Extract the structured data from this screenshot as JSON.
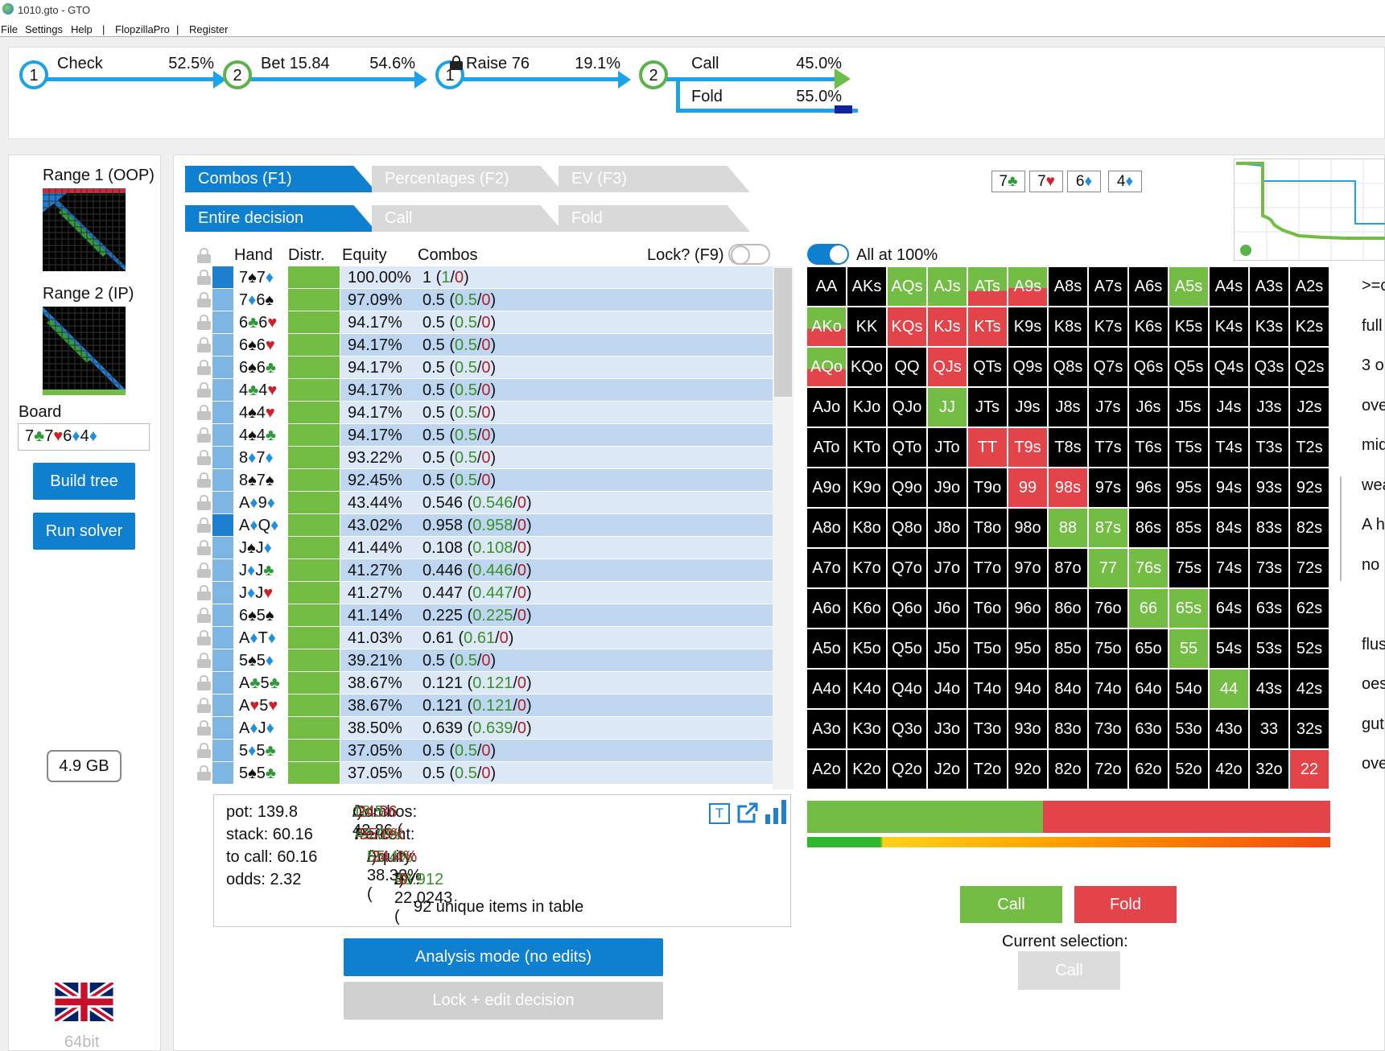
{
  "window": {
    "title": "1010.gto - GTO",
    "menu": [
      "File",
      "Settings",
      "Help",
      "|",
      "FlopzillaPro",
      "|",
      "Register"
    ]
  },
  "action_tree": {
    "nodes": [
      {
        "player": "1",
        "action": "Check",
        "pct": "52.5%"
      },
      {
        "player": "2",
        "action": "Bet 15.84",
        "pct": "54.6%"
      },
      {
        "player": "1",
        "action": "Raise 76",
        "pct": "19.1%",
        "locked": true
      },
      {
        "player": "2",
        "branches": [
          {
            "action": "Call",
            "pct": "45.0%"
          },
          {
            "action": "Fold",
            "pct": "55.0%"
          }
        ]
      }
    ]
  },
  "left": {
    "range1_label": "Range 1 (OOP)",
    "range2_label": "Range 2 (IP)",
    "board_label": "Board",
    "board_cards": [
      {
        "rank": "7",
        "suit": "♣",
        "color": "#2e9a3a"
      },
      {
        "rank": "7",
        "suit": "♥",
        "color": "#d0202a"
      },
      {
        "rank": "6",
        "suit": "♦",
        "color": "#1f8fe0"
      },
      {
        "rank": "4",
        "suit": "♦",
        "color": "#1f8fe0"
      }
    ],
    "build_tree": "Build tree",
    "run_solver": "Run solver",
    "memory": "4.9 GB",
    "bits": "64bit"
  },
  "tabs_row1": [
    "Combos (F1)",
    "Percentages (F2)",
    "EV (F3)"
  ],
  "tabs_row2": [
    "Entire decision",
    "Call",
    "Fold"
  ],
  "board_cards_display": [
    {
      "rank": "7",
      "suit": "♣",
      "color": "#2e9a3a"
    },
    {
      "rank": "7",
      "suit": "♥",
      "color": "#d0202a"
    },
    {
      "rank": "6",
      "suit": "♦",
      "color": "#1f8fe0"
    },
    {
      "rank": "4",
      "suit": "♦",
      "color": "#1f8fe0"
    }
  ],
  "table": {
    "headers": {
      "hand": "Hand",
      "distr": "Distr.",
      "equity": "Equity",
      "combos": "Combos"
    },
    "lock_label": "Lock? (F9)",
    "rows": [
      {
        "c1": "7",
        "s1": "♠",
        "c2": "7",
        "s2": "♦",
        "eq": "100.00%",
        "cb": "1",
        "call": "1",
        "fold": "0",
        "sel": true
      },
      {
        "c1": "7",
        "s1": "♦",
        "c2": "6",
        "s2": "♠",
        "eq": "97.09%",
        "cb": "0.5",
        "call": "0.5",
        "fold": "0",
        "sel": false
      },
      {
        "c1": "6",
        "s1": "♣",
        "c2": "6",
        "s2": "♥",
        "eq": "94.17%",
        "cb": "0.5",
        "call": "0.5",
        "fold": "0",
        "sel": false
      },
      {
        "c1": "6",
        "s1": "♠",
        "c2": "6",
        "s2": "♥",
        "eq": "94.17%",
        "cb": "0.5",
        "call": "0.5",
        "fold": "0",
        "sel": false
      },
      {
        "c1": "6",
        "s1": "♠",
        "c2": "6",
        "s2": "♣",
        "eq": "94.17%",
        "cb": "0.5",
        "call": "0.5",
        "fold": "0",
        "sel": false
      },
      {
        "c1": "4",
        "s1": "♣",
        "c2": "4",
        "s2": "♥",
        "eq": "94.17%",
        "cb": "0.5",
        "call": "0.5",
        "fold": "0",
        "sel": false
      },
      {
        "c1": "4",
        "s1": "♠",
        "c2": "4",
        "s2": "♥",
        "eq": "94.17%",
        "cb": "0.5",
        "call": "0.5",
        "fold": "0",
        "sel": false
      },
      {
        "c1": "4",
        "s1": "♠",
        "c2": "4",
        "s2": "♣",
        "eq": "94.17%",
        "cb": "0.5",
        "call": "0.5",
        "fold": "0",
        "sel": false
      },
      {
        "c1": "8",
        "s1": "♦",
        "c2": "7",
        "s2": "♦",
        "eq": "93.22%",
        "cb": "0.5",
        "call": "0.5",
        "fold": "0",
        "sel": false
      },
      {
        "c1": "8",
        "s1": "♠",
        "c2": "7",
        "s2": "♠",
        "eq": "92.45%",
        "cb": "0.5",
        "call": "0.5",
        "fold": "0",
        "sel": false
      },
      {
        "c1": "A",
        "s1": "♦",
        "c2": "9",
        "s2": "♦",
        "eq": "43.44%",
        "cb": "0.546",
        "call": "0.546",
        "fold": "0",
        "sel": false
      },
      {
        "c1": "A",
        "s1": "♦",
        "c2": "Q",
        "s2": "♦",
        "eq": "43.02%",
        "cb": "0.958",
        "call": "0.958",
        "fold": "0",
        "sel": true
      },
      {
        "c1": "J",
        "s1": "♠",
        "c2": "J",
        "s2": "♦",
        "eq": "41.44%",
        "cb": "0.108",
        "call": "0.108",
        "fold": "0",
        "sel": false
      },
      {
        "c1": "J",
        "s1": "♦",
        "c2": "J",
        "s2": "♣",
        "eq": "41.27%",
        "cb": "0.446",
        "call": "0.446",
        "fold": "0",
        "sel": false
      },
      {
        "c1": "J",
        "s1": "♦",
        "c2": "J",
        "s2": "♥",
        "eq": "41.27%",
        "cb": "0.447",
        "call": "0.447",
        "fold": "0",
        "sel": false
      },
      {
        "c1": "6",
        "s1": "♠",
        "c2": "5",
        "s2": "♠",
        "eq": "41.14%",
        "cb": "0.225",
        "call": "0.225",
        "fold": "0",
        "sel": false
      },
      {
        "c1": "A",
        "s1": "♦",
        "c2": "T",
        "s2": "♦",
        "eq": "41.03%",
        "cb": "0.61",
        "call": "0.61",
        "fold": "0",
        "sel": false
      },
      {
        "c1": "5",
        "s1": "♠",
        "c2": "5",
        "s2": "♦",
        "eq": "39.21%",
        "cb": "0.5",
        "call": "0.5",
        "fold": "0",
        "sel": false
      },
      {
        "c1": "A",
        "s1": "♣",
        "c2": "5",
        "s2": "♣",
        "eq": "38.67%",
        "cb": "0.121",
        "call": "0.121",
        "fold": "0",
        "sel": false
      },
      {
        "c1": "A",
        "s1": "♥",
        "c2": "5",
        "s2": "♥",
        "eq": "38.67%",
        "cb": "0.121",
        "call": "0.121",
        "fold": "0",
        "sel": false
      },
      {
        "c1": "A",
        "s1": "♦",
        "c2": "J",
        "s2": "♦",
        "eq": "38.50%",
        "cb": "0.639",
        "call": "0.639",
        "fold": "0",
        "sel": false
      },
      {
        "c1": "5",
        "s1": "♦",
        "c2": "5",
        "s2": "♣",
        "eq": "37.05%",
        "cb": "0.5",
        "call": "0.5",
        "fold": "0",
        "sel": false
      },
      {
        "c1": "5",
        "s1": "♠",
        "c2": "5",
        "s2": "♣",
        "eq": "37.05%",
        "cb": "0.5",
        "call": "0.5",
        "fold": "0",
        "sel": false
      }
    ]
  },
  "summary": {
    "pot": "pot: 139.8",
    "stack": "stack: 60.16",
    "to_call": "to call: 60.16",
    "odds": "odds: 2.32",
    "combos_label": "Combos: 42.86 (",
    "combos_call": "18.5",
    "combos_fold": "24.36",
    "percent_label": "Percent: ",
    "percent_call": "45.0%",
    "percent_fold": "55.0%",
    "equity_label": "Equity: 38.32% (",
    "equity_call": "55.4%",
    "equity_fold": "24.4%",
    "ev_label": "EV: 22.0243 (",
    "ev_call": "48.912",
    "ev_fold": "0",
    "unique_items": "92 unique items in table"
  },
  "analysis_button": "Analysis mode (no edits)",
  "lock_edit_button": "Lock + edit decision",
  "matrix": {
    "all_at_100": "All at 100%",
    "ranks": [
      "A",
      "K",
      "Q",
      "J",
      "T",
      "9",
      "8",
      "7",
      "6",
      "5",
      "4",
      "3",
      "2"
    ],
    "cells": {
      "AQs": {
        "call": 1.0
      },
      "AJs": {
        "call": 1.0
      },
      "ATs": {
        "call": 0.61
      },
      "A9s": {
        "call": 0.546
      },
      "A5s": {
        "call": 1.0
      },
      "AKo": {
        "call": 0.55
      },
      "KQs": {
        "call": 0.0
      },
      "KJs": {
        "call": 0.0
      },
      "KTs": {
        "call": 0.0
      },
      "AQo": {
        "call": 0.55
      },
      "QJs": {
        "call": 0.0
      },
      "JJ": {
        "call": 1.0
      },
      "TT": {
        "call": 0.0
      },
      "T9s": {
        "call": 0.0
      },
      "99": {
        "call": 0.0
      },
      "98s": {
        "call": 0.0
      },
      "88": {
        "call": 1.0
      },
      "87s": {
        "call": 1.0
      },
      "77": {
        "call": 1.0
      },
      "76s": {
        "call": 1.0
      },
      "66": {
        "call": 1.0
      },
      "65s": {
        "call": 1.0
      },
      "55": {
        "call": 1.0
      },
      "44": {
        "call": 1.0
      },
      "22": {
        "call": 0.0
      }
    }
  },
  "strategy_bar": {
    "call_pct": 45.0,
    "fold_pct": 55.0
  },
  "actions": {
    "call": "Call",
    "fold": "Fold",
    "current_selection_label": "Current selection:",
    "current_selection": "Call"
  },
  "right_clipped_text": [
    ">=c",
    "full",
    "3 o",
    "ove",
    "mid",
    "wea",
    "A h",
    "no",
    "",
    "flus",
    "oes",
    "gut",
    "ove"
  ],
  "colors": {
    "accent_blue": "#0f7fd0",
    "call_green": "#74bd44",
    "fold_red": "#e3444a",
    "tree_line": "#1aa3e8"
  }
}
